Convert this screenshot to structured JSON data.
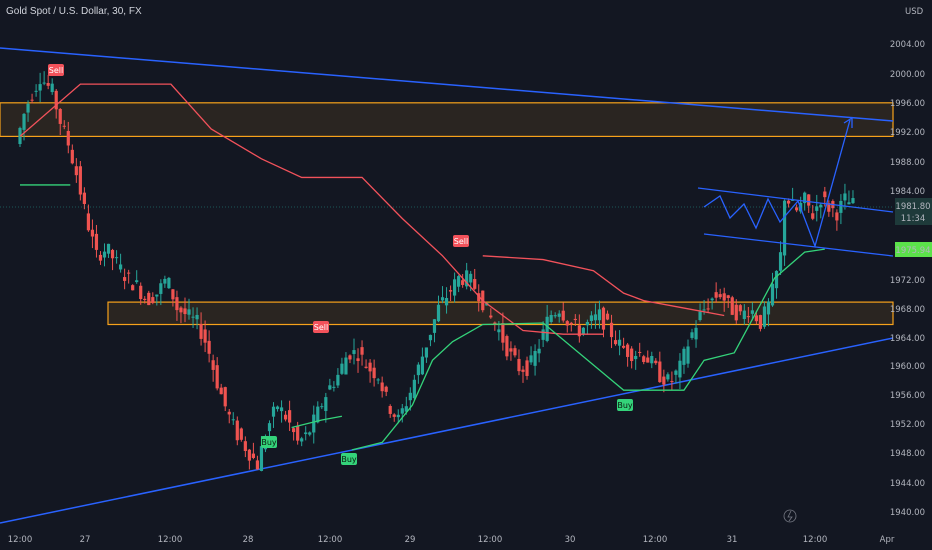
{
  "title": "Gold Spot / U.S. Dollar, 30, FX",
  "currency": "USD",
  "colors": {
    "background": "#131722",
    "bull": "#26a69a",
    "bear": "#ef5350",
    "trendline": "#2962ff",
    "zone": "#f7a21b",
    "supertrend_down": "#f2525b",
    "supertrend_up": "#34d37a"
  },
  "chart_data": {
    "type": "candlestick",
    "x_ticks": [
      "12:00",
      "27",
      "12:00",
      "28",
      "12:00",
      "29",
      "12:00",
      "30",
      "12:00",
      "31",
      "12:00",
      "Apr"
    ],
    "y_ticks": [
      "2004.00",
      "2000.00",
      "1996.00",
      "1992.00",
      "1988.00",
      "1984.00",
      "1972.00",
      "1968.00",
      "1964.00",
      "1960.00",
      "1956.00",
      "1952.00",
      "1948.00",
      "1944.00",
      "1940.00"
    ],
    "ylim": [
      1938.4,
      2007.4
    ],
    "price_path": [
      [
        0,
        1990
      ],
      [
        5,
        1995
      ],
      [
        12,
        1999
      ],
      [
        18,
        1997
      ],
      [
        22,
        1993
      ],
      [
        26,
        1990
      ],
      [
        30,
        1986
      ],
      [
        35,
        1980
      ],
      [
        40,
        1975
      ],
      [
        45,
        1976
      ],
      [
        50,
        1974
      ],
      [
        55,
        1972
      ],
      [
        60,
        1971
      ],
      [
        65,
        1969
      ],
      [
        70,
        1970
      ],
      [
        75,
        1972
      ],
      [
        80,
        1968
      ],
      [
        85,
        1967
      ],
      [
        90,
        1966
      ],
      [
        95,
        1963
      ],
      [
        100,
        1958
      ],
      [
        105,
        1954
      ],
      [
        110,
        1951
      ],
      [
        115,
        1949
      ],
      [
        120,
        1947
      ],
      [
        125,
        1952
      ],
      [
        130,
        1955
      ],
      [
        135,
        1953
      ],
      [
        140,
        1950
      ],
      [
        145,
        1951
      ],
      [
        150,
        1954
      ],
      [
        155,
        1957
      ],
      [
        160,
        1959
      ],
      [
        165,
        1962
      ],
      [
        170,
        1962
      ],
      [
        175,
        1960
      ],
      [
        180,
        1959
      ],
      [
        185,
        1955
      ],
      [
        190,
        1953
      ],
      [
        195,
        1956
      ],
      [
        200,
        1960
      ],
      [
        205,
        1964
      ],
      [
        210,
        1968
      ],
      [
        215,
        1970
      ],
      [
        220,
        1972
      ],
      [
        225,
        1972
      ],
      [
        230,
        1970
      ],
      [
        235,
        1967
      ],
      [
        240,
        1965
      ],
      [
        245,
        1962
      ],
      [
        250,
        1960
      ],
      [
        255,
        1960
      ],
      [
        260,
        1963
      ],
      [
        265,
        1967
      ],
      [
        270,
        1968
      ],
      [
        275,
        1966
      ],
      [
        280,
        1965
      ],
      [
        285,
        1966
      ],
      [
        290,
        1967
      ],
      [
        295,
        1965
      ],
      [
        300,
        1963
      ],
      [
        305,
        1962
      ],
      [
        310,
        1962
      ],
      [
        315,
        1961
      ],
      [
        320,
        1959
      ],
      [
        325,
        1958
      ],
      [
        330,
        1960
      ],
      [
        335,
        1964
      ],
      [
        340,
        1967
      ],
      [
        345,
        1969
      ],
      [
        350,
        1970
      ],
      [
        355,
        1968
      ],
      [
        360,
        1967
      ],
      [
        365,
        1968
      ],
      [
        370,
        1966
      ],
      [
        375,
        1969
      ],
      [
        380,
        1975
      ],
      [
        382,
        1983
      ],
      [
        385,
        1982
      ],
      [
        388,
        1981
      ],
      [
        392,
        1982.5
      ],
      [
        396,
        1980.5
      ],
      [
        400,
        1982.8
      ],
      [
        404,
        1981.5
      ],
      [
        408,
        1980.8
      ],
      [
        412,
        1982.5
      ],
      [
        416,
        1981.8
      ]
    ],
    "last_price": "1981.80",
    "countdown": "11:34",
    "indicator_price": "1975.94",
    "signals": [
      {
        "label": "Sell",
        "type": "sell"
      },
      {
        "label": "Sell",
        "type": "sell"
      },
      {
        "label": "Sell",
        "type": "sell"
      },
      {
        "label": "Buy",
        "type": "buy"
      },
      {
        "label": "Buy",
        "type": "buy"
      },
      {
        "label": "Buy",
        "type": "buy"
      }
    ],
    "supply_zone": [
      1991,
      1995.5
    ],
    "demand_zone": [
      1965.8,
      1968.8
    ],
    "grid": false
  }
}
